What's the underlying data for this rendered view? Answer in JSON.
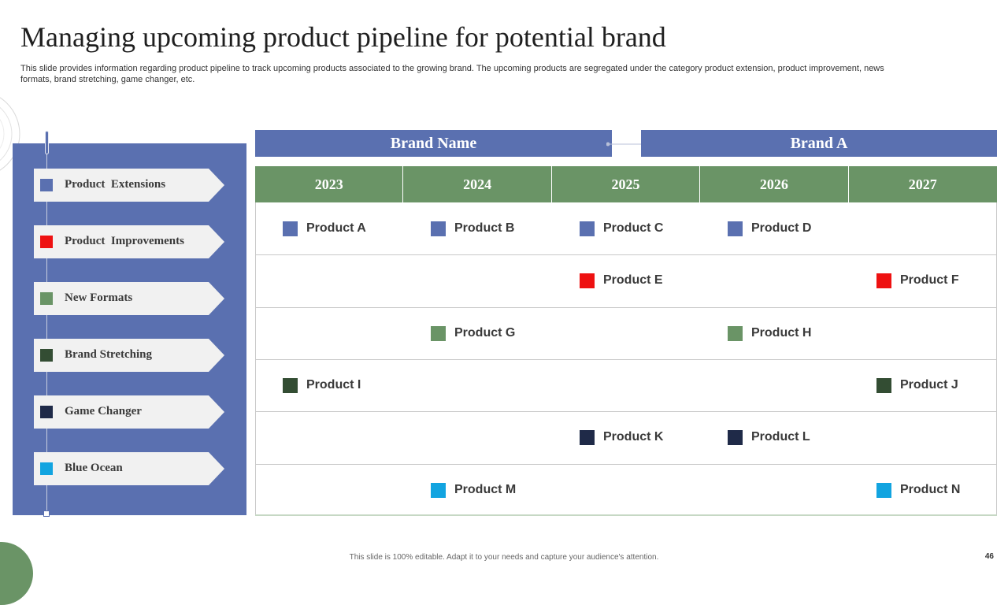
{
  "page": {
    "title": "Managing upcoming product pipeline  for potential brand",
    "subtitle": "This slide provides information regarding product pipeline to track upcoming products associated to the growing brand. The upcoming products are segregated under the category product extension, product improvement, news formats, brand stretching, game changer, etc.",
    "footer": "This slide is 100% editable. Adapt it to your needs and capture your audience's attention.",
    "page_number": "46"
  },
  "header": {
    "brand_name_label": "Brand Name",
    "brand_value": "Brand A"
  },
  "years": [
    "2023",
    "2024",
    "2025",
    "2026",
    "2027"
  ],
  "legend": [
    {
      "label": "Product  Extensions",
      "color": "#5a70b0"
    },
    {
      "label": "Product  Improvements",
      "color": "#ee1111"
    },
    {
      "label": "New Formats",
      "color": "#6a9466"
    },
    {
      "label": "Brand Stretching",
      "color": "#334d33"
    },
    {
      "label": "Game Changer",
      "color": "#1f2a48"
    },
    {
      "label": "Blue Ocean",
      "color": "#12a4e0"
    }
  ],
  "rows": [
    {
      "category": "Product  Extensions",
      "products": [
        {
          "name": "Product A",
          "year": "2023"
        },
        {
          "name": "Product B",
          "year": "2024"
        },
        {
          "name": "Product C",
          "year": "2025"
        },
        {
          "name": "Product D",
          "year": "2026"
        }
      ]
    },
    {
      "category": "Product  Improvements",
      "products": [
        {
          "name": "Product E",
          "year": "2025"
        },
        {
          "name": "Product F",
          "year": "2027"
        }
      ]
    },
    {
      "category": "New Formats",
      "products": [
        {
          "name": "Product G",
          "year": "2024"
        },
        {
          "name": "Product H",
          "year": "2026"
        }
      ]
    },
    {
      "category": "Brand Stretching",
      "products": [
        {
          "name": "Product I",
          "year": "2023"
        },
        {
          "name": "Product J",
          "year": "2027"
        }
      ]
    },
    {
      "category": "Game Changer",
      "products": [
        {
          "name": "Product K",
          "year": "2025"
        },
        {
          "name": "Product L",
          "year": "2026"
        }
      ]
    },
    {
      "category": "Blue Ocean",
      "products": [
        {
          "name": "Product M",
          "year": "2024"
        },
        {
          "name": "Product N",
          "year": "2027"
        }
      ]
    }
  ]
}
